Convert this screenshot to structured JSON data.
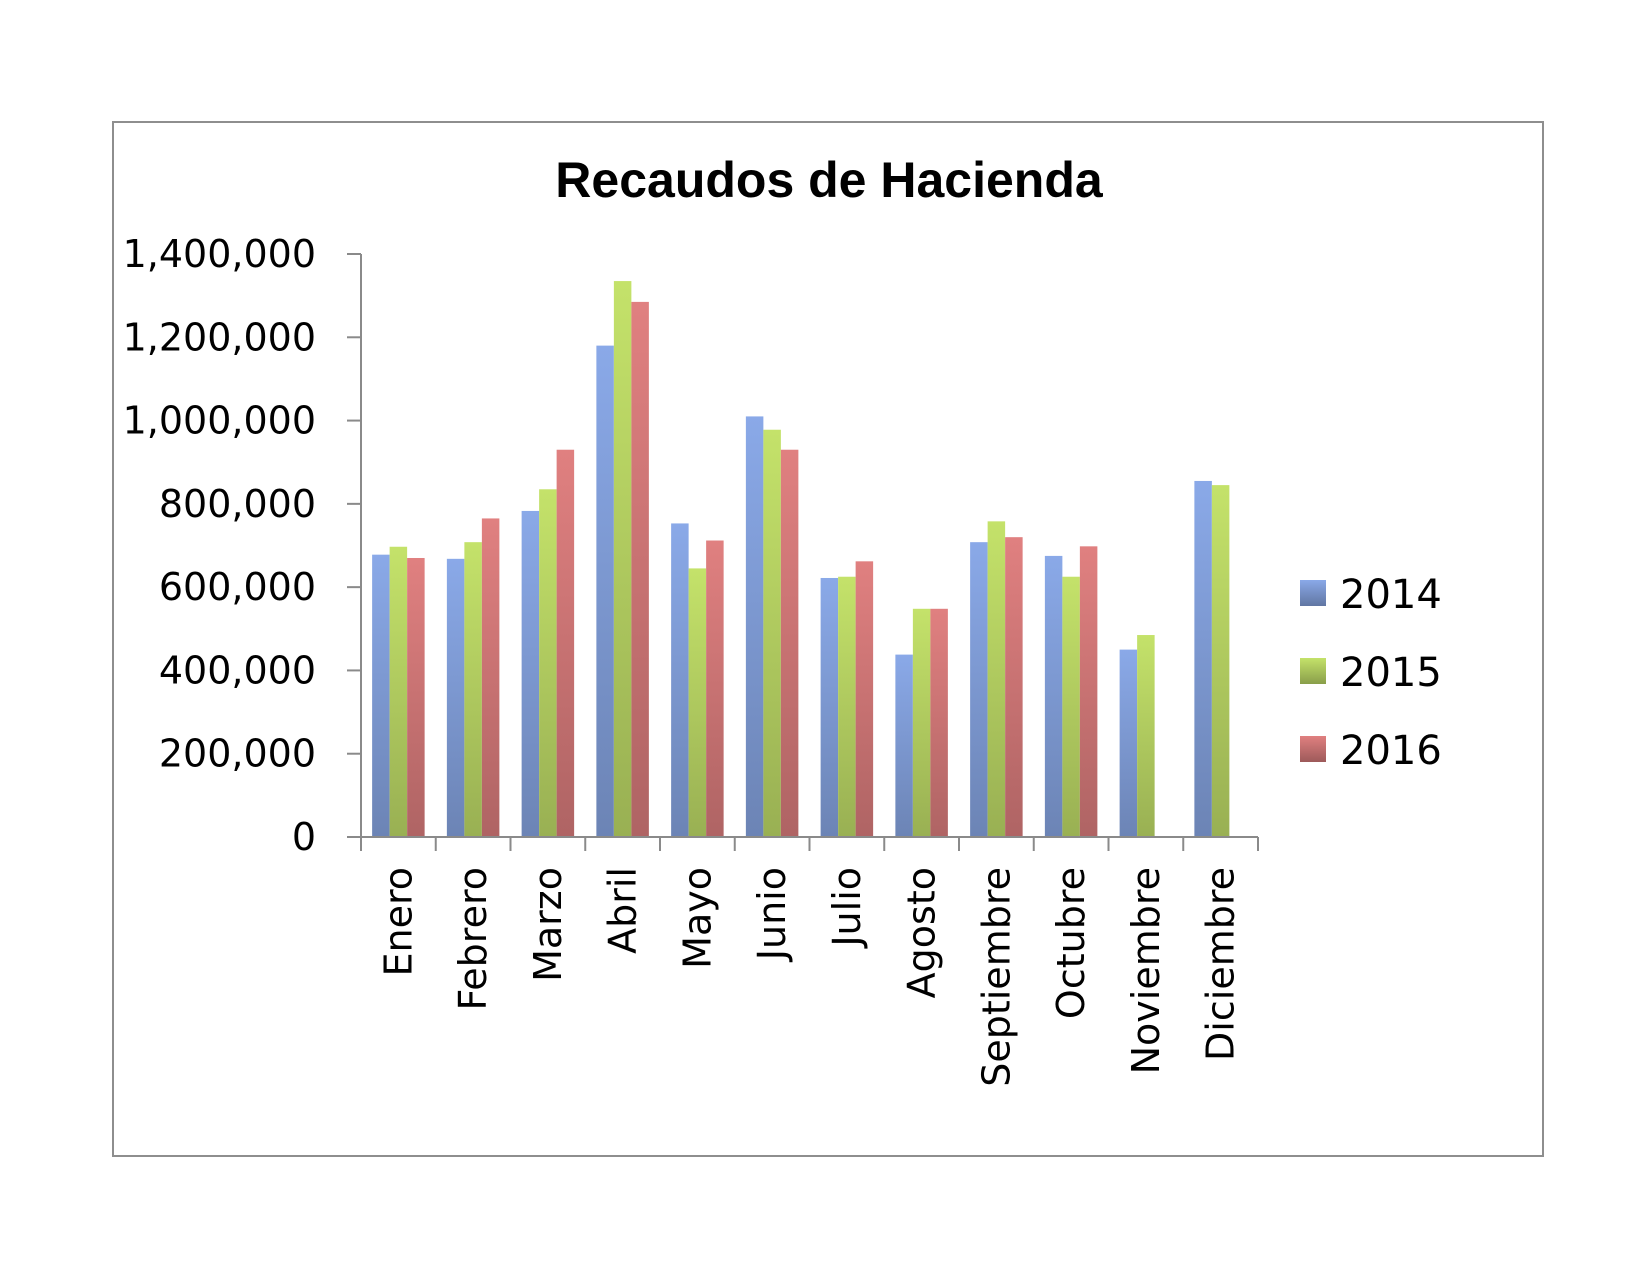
{
  "chart_data": {
    "type": "bar",
    "title": "Recaudos de Hacienda",
    "xlabel": "",
    "ylabel": "",
    "ylim": [
      0,
      1400000
    ],
    "yticks": [
      "0",
      "200,000",
      "400,000",
      "600,000",
      "800,000",
      "1,000,000",
      "1,200,000",
      "1,400,000"
    ],
    "ytick_values": [
      0,
      200000,
      400000,
      600000,
      800000,
      1000000,
      1200000,
      1400000
    ],
    "categories": [
      "Enero",
      "Febrero",
      "Marzo",
      "Abril",
      "Mayo",
      "Junio",
      "Julio",
      "Agosto",
      "Septiembre",
      "Octubre",
      "Noviembre",
      "Diciembre"
    ],
    "series": [
      {
        "name": "2014",
        "color": "#8aa9e8",
        "values": [
          678000,
          668000,
          783000,
          1180000,
          753000,
          1010000,
          622000,
          438000,
          708000,
          675000,
          450000,
          855000
        ]
      },
      {
        "name": "2015",
        "color": "#c4e26a",
        "values": [
          697000,
          708000,
          835000,
          1335000,
          645000,
          978000,
          625000,
          548000,
          758000,
          625000,
          485000,
          845000
        ]
      },
      {
        "name": "2016",
        "color": "#e08080",
        "values": [
          670000,
          765000,
          930000,
          1285000,
          712000,
          930000,
          662000,
          548000,
          720000,
          698000,
          null,
          null
        ]
      }
    ],
    "legend_position": "right",
    "grid": false
  }
}
